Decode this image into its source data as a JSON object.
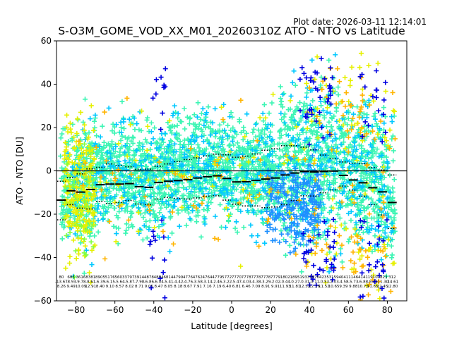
{
  "chart_data": {
    "type": "scatter",
    "title": "S-O3M_GOME_VOD_XX_M01_20260310Z ATO - NTO vs Latitude",
    "plot_date": "Plot date: 2026-03-11 12:14:01",
    "xlabel": "Latitude [degrees]",
    "ylabel": "ATO - NTO [DU]",
    "xlim": [
      -90,
      90
    ],
    "ylim": [
      -60,
      60
    ],
    "xticks": [
      -80,
      -60,
      -40,
      -20,
      0,
      20,
      40,
      60,
      80
    ],
    "yticks": [
      -60,
      -40,
      -20,
      0,
      20,
      40,
      60
    ],
    "zero_line": 0,
    "colors": {
      "main_cloud": "#3cf5b4",
      "cyan": "#00c8ff",
      "mid_blue": "#1e90ff",
      "yellow": "#e6f000",
      "orange": "#ffb400",
      "green_yellow": "#80ff40",
      "dark_blue": "#0000e0",
      "black": "#000000"
    },
    "bins": {
      "lat": [
        -87.5,
        -82.5,
        -77.5,
        -72.5,
        -67.5,
        -62.5,
        -57.5,
        -52.5,
        -47.5,
        -42.5,
        -37.5,
        -32.5,
        -27.5,
        -22.5,
        -17.5,
        -12.5,
        -7.5,
        -2.5,
        2.5,
        7.5,
        12.5,
        17.5,
        22.5,
        27.5,
        32.5,
        37.5,
        42.5,
        47.5,
        52.5,
        57.5,
        62.5,
        67.5,
        72.5,
        77.5,
        82.5
      ],
      "mean": [
        -13.5,
        -9.2,
        -9.8,
        -8.6,
        -6.4,
        -6.1,
        -6.1,
        -5.9,
        -7.3,
        -7.6,
        -5.4,
        -4.8,
        -4.5,
        -4.1,
        -3.3,
        -2.7,
        -2.3,
        -3.5,
        -5.1,
        -5.0,
        -4.4,
        -3.8,
        -3.3,
        -1.9,
        -1.0,
        -0.3,
        -0.5,
        -0.3,
        -0.1,
        -2.1,
        -4.2,
        -5.5,
        -7.8,
        -9.7,
        -14.6
      ],
      "upper": [
        -4.8,
        -3.1,
        -1.4,
        0.9,
        1.6,
        3.2,
        2.4,
        1.9,
        0.7,
        0.8,
        2.1,
        3.2,
        4.3,
        5.2,
        6.0,
        6.9,
        7.7,
        7.4,
        6.3,
        6.8,
        7.8,
        9.5,
        10.2,
        11.6,
        11.6,
        10.9,
        9.7,
        7.3,
        5.6,
        4.1,
        3.5,
        3.3,
        1.5,
        0.4,
        -1.9
      ],
      "lower": [
        -22.6,
        -15.6,
        -17.2,
        -17.6,
        -14.1,
        -15.1,
        -14.6,
        -13.7,
        -15.3,
        -15.6,
        -13.0,
        -12.3,
        -12.7,
        -13.0,
        -12.5,
        -11.7,
        -11.5,
        -13.5,
        -15.4,
        -16.2,
        -16.2,
        -17.0,
        -16.7,
        -15.6,
        -13.7,
        -11.5,
        -11.6,
        -10.1,
        -8.8,
        -7.0,
        -8.9,
        -11.7,
        -15.6,
        -20.4,
        -26.6
      ]
    },
    "stats": {
      "counts": [
        "80",
        "685",
        "3616",
        "8381",
        "8905",
        "5176",
        "5603",
        "3797",
        "3914",
        "4878",
        "4884",
        "6814",
        "4799",
        "4776",
        "4762",
        "4764",
        "4779",
        "5772",
        "7770",
        "7778",
        "7778",
        "7778",
        "7779",
        "1802",
        "1895",
        "1933",
        "1970",
        "4235",
        "3159",
        "4041",
        "1146",
        "4141",
        "1910",
        "1823",
        "312"
      ],
      "means": [
        "-13.67",
        "-8.93",
        "-9.78",
        "-8.61",
        "-6.39",
        "-6.15",
        "-5.64",
        "-5.87",
        "-7.98",
        "-6.86",
        "-6.04",
        "-5.41",
        "-4.42",
        "-4.76",
        "-3.58",
        "-3.14",
        "-2.46",
        "-3.22",
        "-5.47",
        "-4.03",
        "-4.38",
        "-3.29",
        "-2.02",
        "-0.44",
        "-0.27",
        "-0.31",
        "-0.11",
        "-0.53",
        "-2.03",
        "-4.58",
        "-5.73",
        "-6.88",
        "-9.21",
        "-11.30",
        "-14.61"
      ],
      "stds": [
        "8.26",
        "9.49",
        "10.09",
        "12.91",
        "8.40",
        "9.10",
        "8.57",
        "8.02",
        "8.71",
        "9.05",
        "8.47",
        "8.05",
        "8.18",
        "8.67",
        "7.91",
        "7.16",
        "7.19",
        "6.40",
        "6.81",
        "6.46",
        "7.09",
        "8.91",
        "9.91",
        "11.93",
        "11.81",
        "12.52",
        "12.26",
        "11.52",
        "10.65",
        "9.39",
        "9.88",
        "10.75",
        "11.65",
        "12.45",
        "12.80"
      ]
    }
  }
}
